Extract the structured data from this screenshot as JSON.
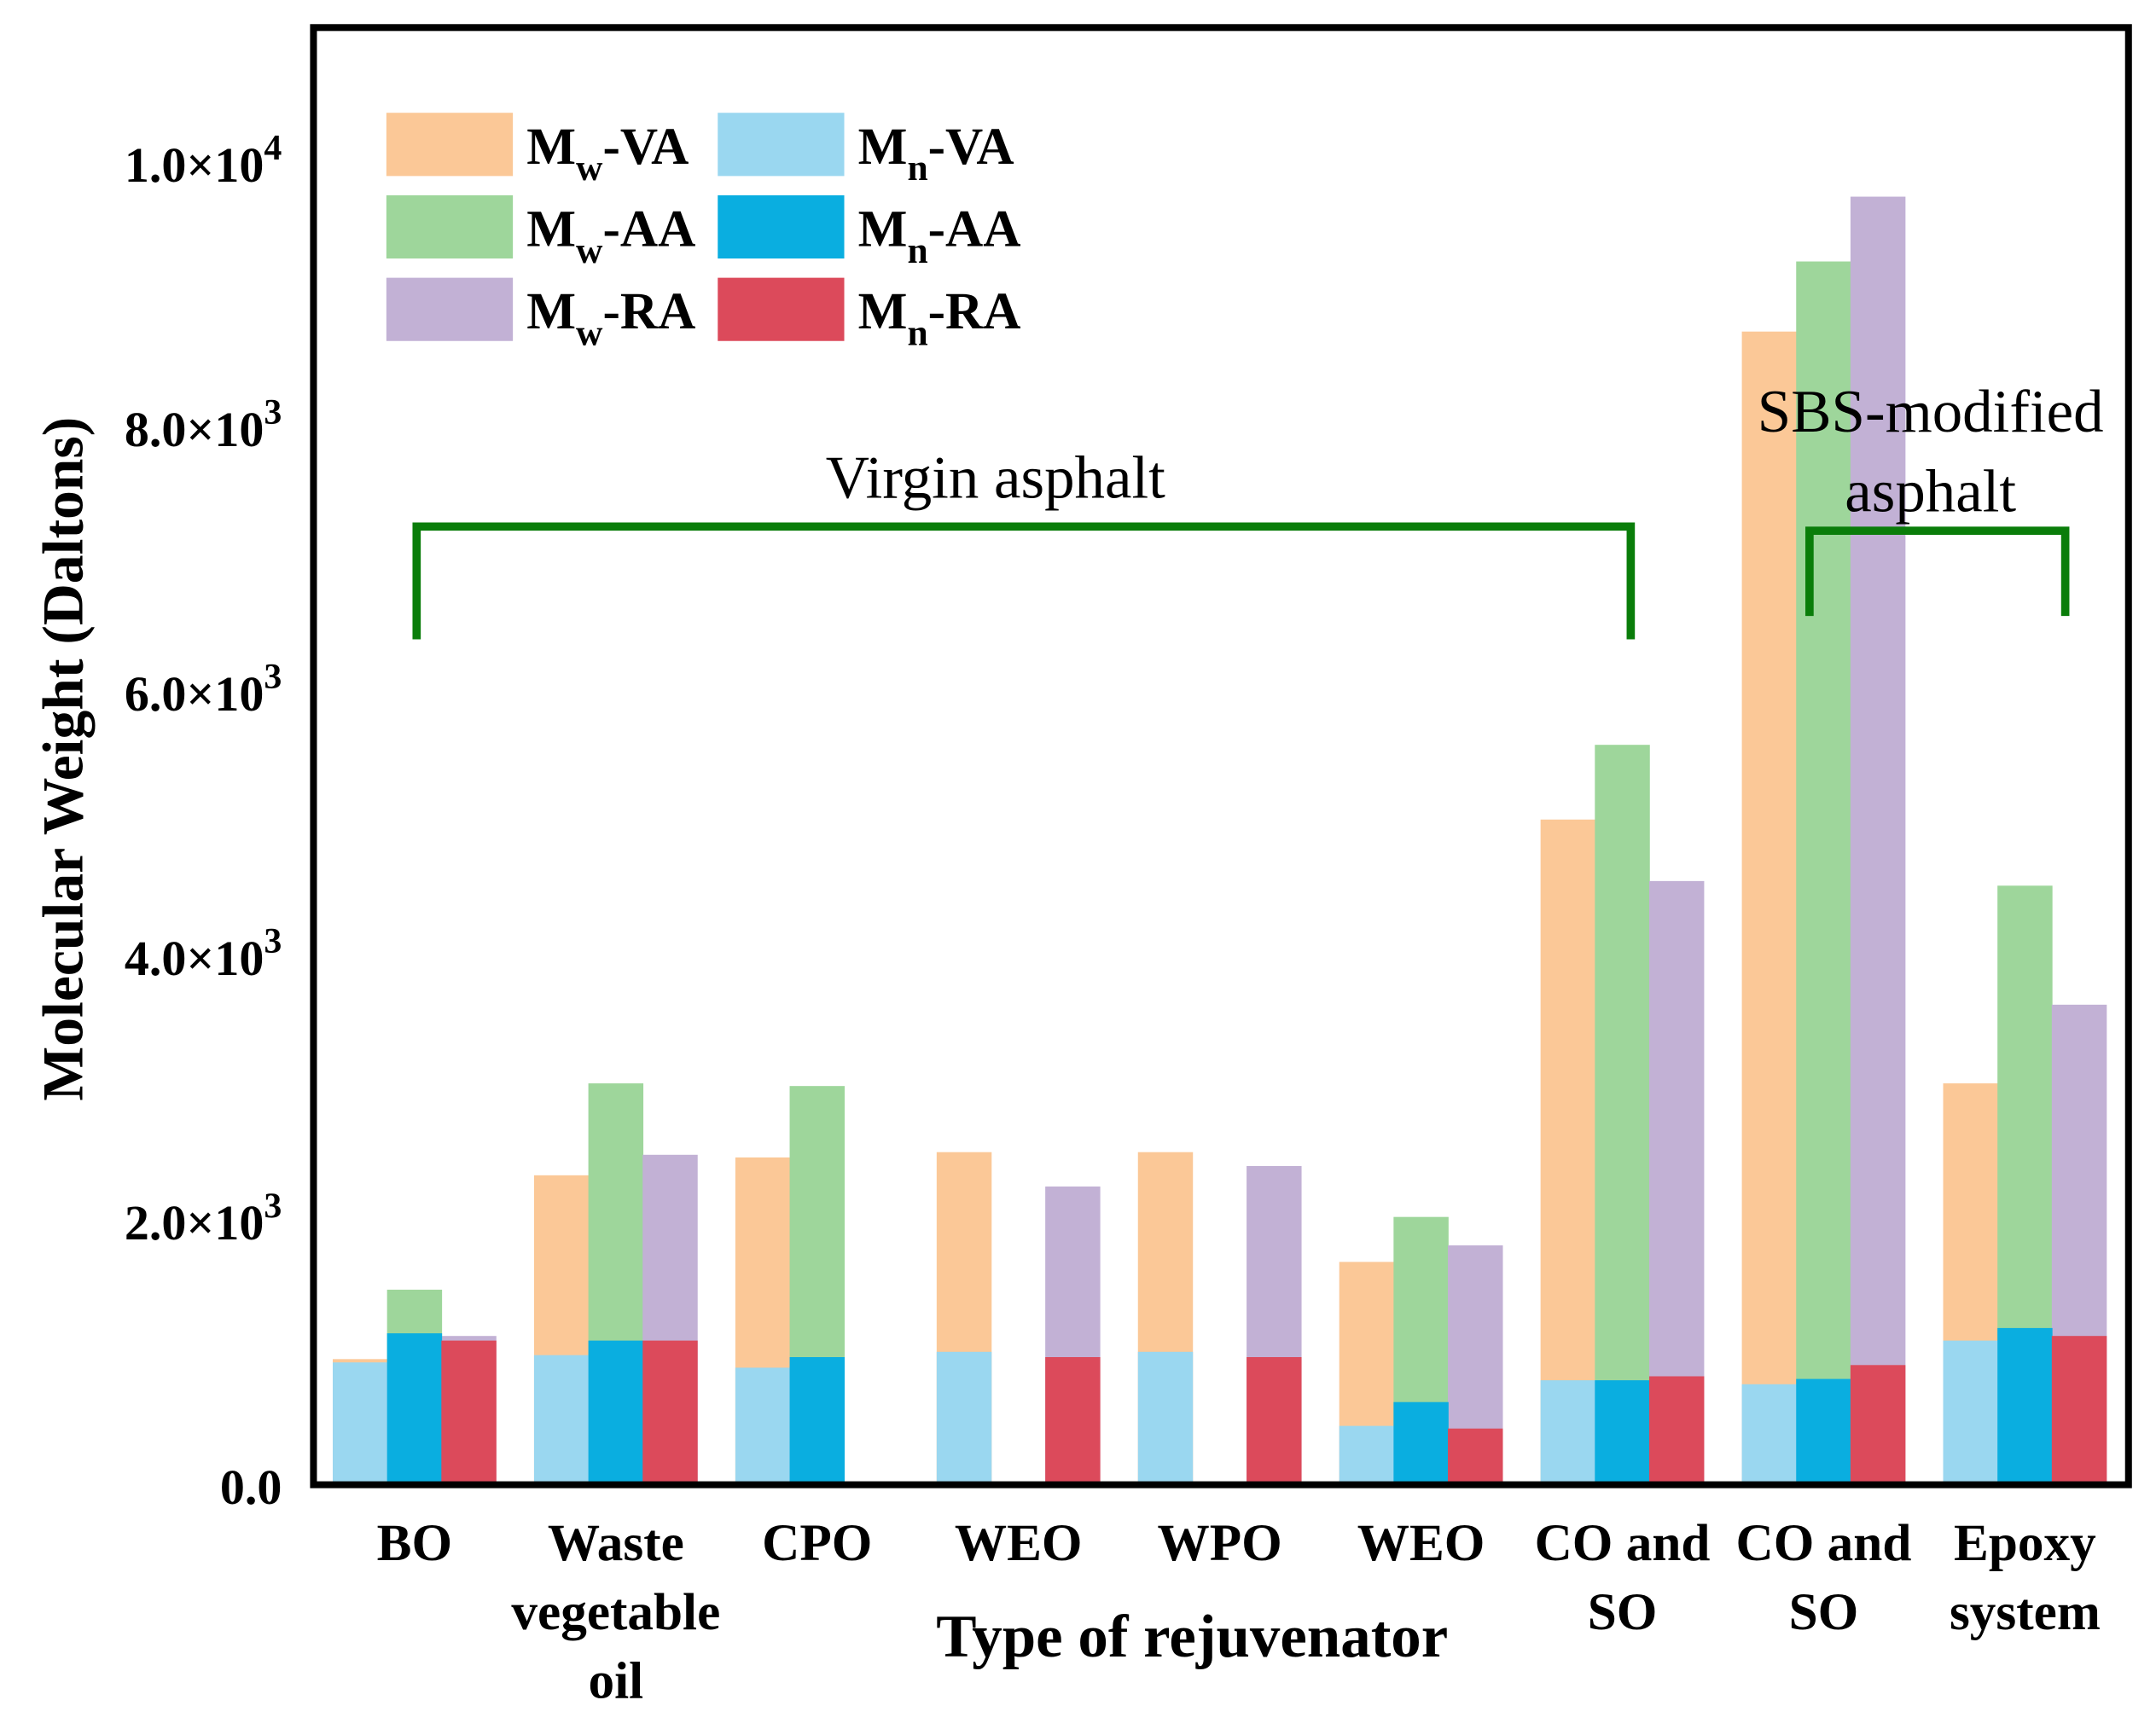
{
  "chart_data": {
    "type": "bar",
    "title": "",
    "xlabel": "Type of rejuvenator",
    "ylabel": "Molecular Weight (Daltons)",
    "ylim": [
      0,
      11000
    ],
    "yticks": [
      {
        "value": 0,
        "label": "0.0",
        "exp": ""
      },
      {
        "value": 2000,
        "label": "2.0×10",
        "exp": "3"
      },
      {
        "value": 4000,
        "label": "4.0×10",
        "exp": "3"
      },
      {
        "value": 6000,
        "label": "6.0×10",
        "exp": "3"
      },
      {
        "value": 8000,
        "label": "8.0×10",
        "exp": "3"
      },
      {
        "value": 10000,
        "label": "1.0×10",
        "exp": "4"
      }
    ],
    "categories": [
      [
        "BO"
      ],
      [
        "Waste",
        "vegetable",
        "oil"
      ],
      [
        "CPO"
      ],
      [
        "WEO"
      ],
      [
        "WPO"
      ],
      [
        "WEO"
      ],
      [
        "CO and",
        "SO"
      ],
      [
        "CO and",
        "SO"
      ],
      [
        "Epoxy",
        "system"
      ]
    ],
    "series": [
      {
        "name": "Mw-VA",
        "color": "#fbc897",
        "values": [
          950,
          2340,
          2475,
          2515,
          2515,
          1685,
          5030,
          8720,
          3035
        ]
      },
      {
        "name": "Mw-AA",
        "color": "#9ed69b",
        "values": [
          1475,
          3035,
          3015,
          null,
          null,
          2025,
          5595,
          9250,
          4530
        ]
      },
      {
        "name": "Mw-RA",
        "color": "#c2b1d5",
        "values": [
          1125,
          2495,
          null,
          2255,
          2410,
          1810,
          4565,
          9740,
          3630
        ]
      },
      {
        "name": "Mn-VA",
        "color": "#9ad7f0",
        "values": [
          925,
          980,
          885,
          1005,
          1005,
          445,
          790,
          760,
          1090
        ]
      },
      {
        "name": "Mn-AA",
        "color": "#0aaee0",
        "values": [
          1145,
          1090,
          965,
          null,
          null,
          625,
          790,
          800,
          1185
        ]
      },
      {
        "name": "Mn-RA",
        "color": "#dc4a5b",
        "values": [
          1090,
          1090,
          null,
          965,
          965,
          425,
          820,
          905,
          1125
        ]
      }
    ],
    "legend": {
      "placement": "top-left",
      "entries": [
        {
          "m": "M",
          "sub": "w",
          "rest": "-VA"
        },
        {
          "m": "M",
          "sub": "n",
          "rest": "-VA"
        },
        {
          "m": "M",
          "sub": "w",
          "rest": "-AA"
        },
        {
          "m": "M",
          "sub": "n",
          "rest": "-AA"
        },
        {
          "m": "M",
          "sub": "w",
          "rest": "-RA"
        },
        {
          "m": "M",
          "sub": "n",
          "rest": "-RA"
        }
      ]
    },
    "annotations": {
      "virgin": "Virgin asphalt",
      "sbs_line1": "SBS-modified",
      "sbs_line2": "asphalt",
      "bracket_color": "#0a7d0a"
    }
  }
}
